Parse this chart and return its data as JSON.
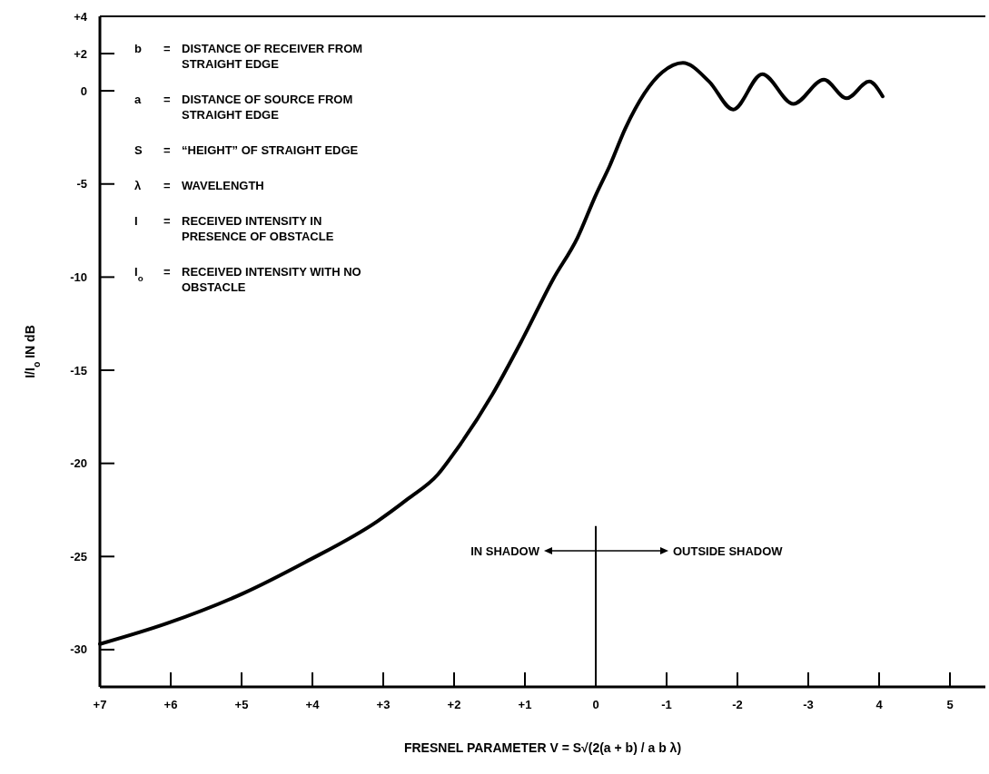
{
  "chart_data": {
    "type": "line",
    "xlabel": "FRESNEL PARAMETER V = S√(2(a + b) / a b λ)",
    "ylabel": "I/I$_{o}$ IN dB",
    "series": [
      {
        "color": "#000000",
        "x": [
          7,
          6.06,
          4.99,
          4.1,
          3.08,
          2.65,
          2.23,
          2.01,
          1.46,
          1.03,
          0.6,
          0.26,
          0,
          -0.2,
          -0.42,
          -0.94,
          -1.23,
          -1.6,
          -1.94,
          -2.35,
          -2.79,
          -3.22,
          -3.54,
          -3.86,
          -4.05
        ],
        "values": [
          -29.7,
          -28.6,
          -27.0,
          -25.3,
          -23.1,
          -21.9,
          -20.6,
          -19.5,
          -16.3,
          -13.3,
          -10.1,
          -7.9,
          -5.6,
          -4.0,
          -2.0,
          1.0,
          1.5,
          0.5,
          -1.0,
          0.9,
          -0.7,
          0.6,
          -0.4,
          0.5,
          -0.3
        ]
      }
    ],
    "xlim": [
      7,
      -5.5
    ],
    "xticks": [
      {
        "value": 7,
        "label": "+7"
      },
      {
        "value": 6,
        "label": "+6"
      },
      {
        "value": 5,
        "label": "+5"
      },
      {
        "value": 4,
        "label": "+4"
      },
      {
        "value": 3,
        "label": "+3"
      },
      {
        "value": 2,
        "label": "+2"
      },
      {
        "value": 1,
        "label": "+1"
      },
      0,
      -1,
      -2,
      -3,
      {
        "value": -4,
        "label": "4"
      },
      {
        "value": -5,
        "label": "5"
      }
    ],
    "ylim": [
      -32,
      4
    ],
    "yticks": [
      {
        "value": 4,
        "label": "+4"
      },
      {
        "value": 2,
        "label": "+2"
      },
      0,
      -5,
      -10,
      -15,
      -20,
      -25,
      -30
    ],
    "grid": false,
    "marker": "none",
    "line_style": "solid",
    "ref_lines": [
      {
        "axis": "x",
        "value": 0
      }
    ],
    "annotations": [
      "b = DISTANCE OF RECEIVER FROM STRAIGHT EDGE",
      "a = DISTANCE OF SOURCE FROM STRAIGHT EDGE",
      "S = “HEIGHT” OF STRAIGHT EDGE",
      "λ = WAVELENGTH",
      "I = RECEIVED INTENSITY IN PRESENCE OF OBSTACLE",
      "I$_{o}$ = RECEIVED INTENSITY WITH NO OBSTACLE",
      "IN SHADOW",
      "OUTSIDE SHADOW"
    ]
  }
}
